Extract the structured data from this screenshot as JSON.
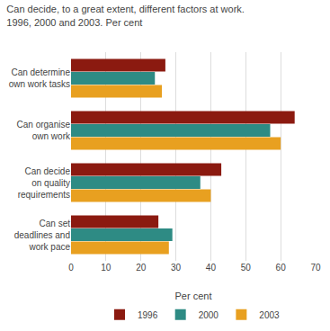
{
  "chart_data": {
    "type": "bar",
    "orientation": "horizontal",
    "title": "Can decide, to a great extent, different factors at work.",
    "subtitle": "1996, 2000 and 2003. Per cent",
    "categories": [
      "Can determine\nown work tasks",
      "Can organise\nown work",
      "Can decide\non quality\nrequirements",
      "Can set\ndeadlines and\nwork pace"
    ],
    "series": [
      {
        "name": "1996",
        "color": "#8B1A10",
        "values": [
          27,
          64,
          43,
          25
        ]
      },
      {
        "name": "2000",
        "color": "#2E8B84",
        "values": [
          24,
          57,
          37,
          29
        ]
      },
      {
        "name": "2003",
        "color": "#E8A020",
        "values": [
          26,
          60,
          40,
          28
        ]
      }
    ],
    "xlabel": "Per cent",
    "xlim": [
      0,
      70
    ],
    "xticks": [
      0,
      10,
      20,
      30,
      40,
      50,
      60,
      70
    ],
    "grid": true,
    "legend": "bottom"
  }
}
